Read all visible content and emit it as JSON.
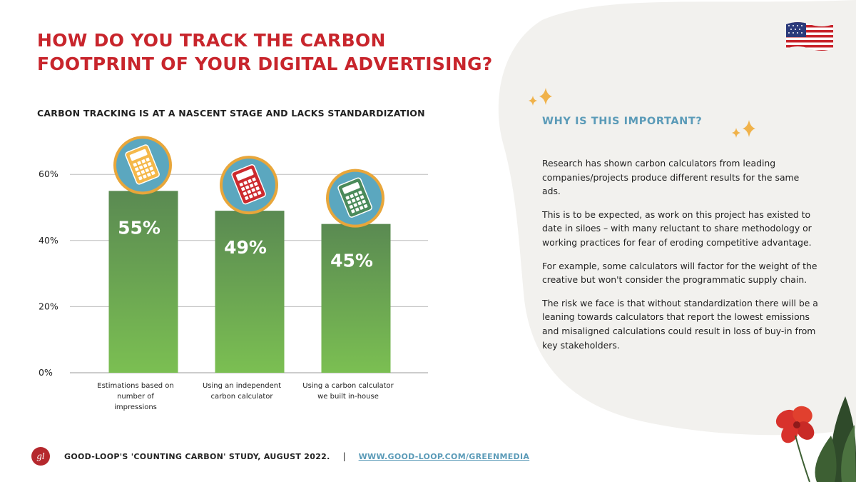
{
  "slide": {
    "title_line1": "HOW DO YOU TRACK THE CARBON",
    "title_line2": "FOOTPRINT OF YOUR DIGITAL ADVERTISING?"
  },
  "chart_data": {
    "type": "bar",
    "title": "CARBON TRACKING IS AT A NASCENT STAGE AND LACKS STANDARDIZATION",
    "categories": [
      [
        "Estimations based on",
        "number of",
        "impressions"
      ],
      [
        "Using an independent",
        "carbon calculator"
      ],
      [
        "Using a carbon calculator",
        "we built in-house"
      ]
    ],
    "values": [
      55,
      49,
      45
    ],
    "data_labels": [
      "55%",
      "49%",
      "45%"
    ],
    "yticks": [
      "0%",
      "20%",
      "40%",
      "60%"
    ],
    "ytick_values": [
      0,
      20,
      40,
      60
    ],
    "ylim": [
      0,
      65
    ],
    "grid": true,
    "bar_color_top": "#5a8a52",
    "bar_color_bottom": "#7bbf52",
    "icons": [
      {
        "name": "orange-calculator-icon",
        "body": "#f4b84a",
        "ring": "#e8a63a"
      },
      {
        "name": "red-calculator-icon",
        "body": "#cc2a2e",
        "ring": "#e8a63a"
      },
      {
        "name": "green-calculator-icon",
        "body": "#4a8a5a",
        "ring": "#e8a63a"
      }
    ]
  },
  "why": {
    "title": "WHY IS THIS IMPORTANT?",
    "paragraphs": [
      "Research has shown carbon calculators from leading companies/projects produce different results for the same ads.",
      "This is to be expected, as work on this project has existed to date in siloes – with many reluctant to share methodology or working practices for fear of eroding competitive advantage.",
      "For example, some calculators will factor for the weight of the creative but won't consider the programmatic supply chain.",
      "The risk we face is that without standardization there will be a leaning towards calculators that report the lowest emissions and misaligned calculations could result in loss of buy-in from key stakeholders."
    ]
  },
  "footer": {
    "logo_text": "gl",
    "study": "GOOD-LOOP'S 'COUNTING CARBON' STUDY, AUGUST 2022.",
    "separator": "|",
    "link": "WWW.GOOD-LOOP.COM/GREENMEDIA"
  },
  "colors": {
    "accent_red": "#c8252c",
    "accent_blue": "#5b9bb8",
    "sparkle": "#f0b24a",
    "blob": "#f2f1ee"
  }
}
